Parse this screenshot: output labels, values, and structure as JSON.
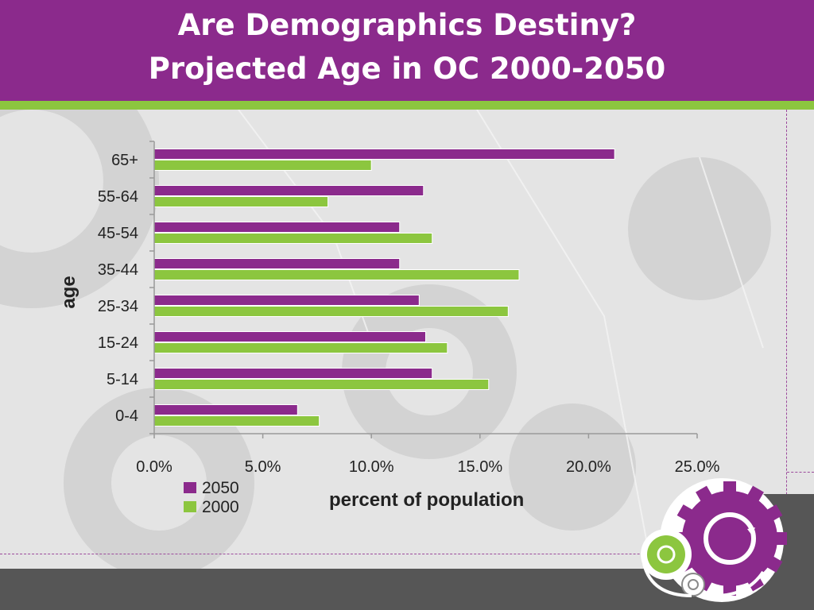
{
  "slide": {
    "title_line1": "Are Demographics Destiny?",
    "title_line2": "Projected Age in OC 2000-2050"
  },
  "colors": {
    "header": "#8b2a8c",
    "accent_green": "#8cc63f",
    "series_2050": "#8b2a8c",
    "series_2000": "#8cc63f",
    "footer": "#565656"
  },
  "logo": {
    "icon": "recycle-gears-icon"
  },
  "chart_data": {
    "type": "bar",
    "orientation": "horizontal",
    "categories": [
      "65+",
      "55-64",
      "45-54",
      "35-44",
      "25-34",
      "15-24",
      "5-14",
      "0-4"
    ],
    "series": [
      {
        "name": "2050",
        "color": "#8b2a8c",
        "values": [
          21.2,
          12.4,
          11.3,
          11.3,
          12.2,
          12.5,
          12.8,
          6.6
        ]
      },
      {
        "name": "2000",
        "color": "#8cc63f",
        "values": [
          10.0,
          8.0,
          12.8,
          16.8,
          16.3,
          13.5,
          15.4,
          7.6
        ]
      }
    ],
    "xlim": [
      0,
      25
    ],
    "x_ticks": [
      "0.0%",
      "5.0%",
      "10.0%",
      "15.0%",
      "20.0%",
      "25.0%"
    ],
    "xlabel": "percent of population",
    "ylabel": "age",
    "grid": false,
    "legend_position": "bottom-left"
  }
}
